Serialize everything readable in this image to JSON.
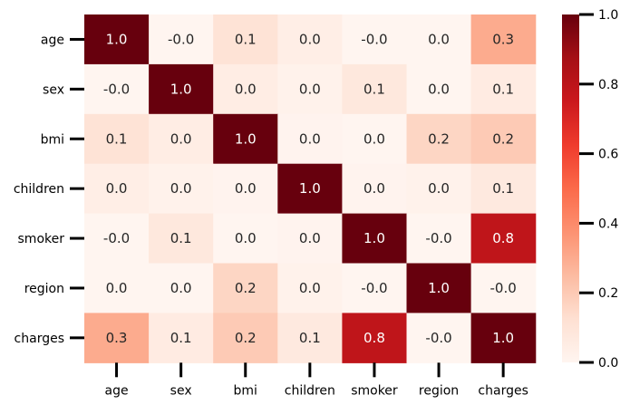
{
  "chart_data": {
    "type": "heatmap",
    "title": "",
    "xlabel": "",
    "ylabel": "",
    "x_labels": [
      "age",
      "sex",
      "bmi",
      "children",
      "smoker",
      "region",
      "charges"
    ],
    "y_labels": [
      "age",
      "sex",
      "bmi",
      "children",
      "smoker",
      "region",
      "charges"
    ],
    "values": [
      [
        1.0,
        -0.02,
        0.11,
        0.04,
        -0.03,
        0.0,
        0.3
      ],
      [
        -0.02,
        1.0,
        0.05,
        0.02,
        0.08,
        0.0,
        0.06
      ],
      [
        0.11,
        0.05,
        1.0,
        0.01,
        0.0,
        0.16,
        0.2
      ],
      [
        0.04,
        0.02,
        0.01,
        1.0,
        0.01,
        0.02,
        0.07
      ],
      [
        -0.03,
        0.08,
        0.0,
        0.01,
        1.0,
        -0.0,
        0.79
      ],
      [
        0.0,
        0.0,
        0.16,
        0.02,
        -0.0,
        1.0,
        -0.01
      ],
      [
        0.3,
        0.06,
        0.2,
        0.07,
        0.79,
        -0.01,
        1.0
      ]
    ],
    "annotations": [
      [
        "1.0",
        "-0.0",
        "0.1",
        "0.0",
        "-0.0",
        "0.0",
        "0.3"
      ],
      [
        "-0.0",
        "1.0",
        "0.0",
        "0.0",
        "0.1",
        "0.0",
        "0.1"
      ],
      [
        "0.1",
        "0.0",
        "1.0",
        "0.0",
        "0.0",
        "0.2",
        "0.2"
      ],
      [
        "0.0",
        "0.0",
        "0.0",
        "1.0",
        "0.0",
        "0.0",
        "0.1"
      ],
      [
        "-0.0",
        "0.1",
        "0.0",
        "0.0",
        "1.0",
        "-0.0",
        "0.8"
      ],
      [
        "0.0",
        "0.0",
        "0.2",
        "0.0",
        "-0.0",
        "1.0",
        "-0.0"
      ],
      [
        "0.3",
        "0.1",
        "0.2",
        "0.1",
        "0.8",
        "-0.0",
        "1.0"
      ]
    ],
    "colormap": "Reds",
    "vmin": 0.0,
    "vmax": 1.0,
    "colorbar": {
      "ticks": [
        0.0,
        0.2,
        0.4,
        0.6,
        0.8,
        1.0
      ],
      "tick_labels": [
        "0.0",
        "0.2",
        "0.4",
        "0.6",
        "0.8",
        "1.0"
      ],
      "placement": "right"
    }
  }
}
